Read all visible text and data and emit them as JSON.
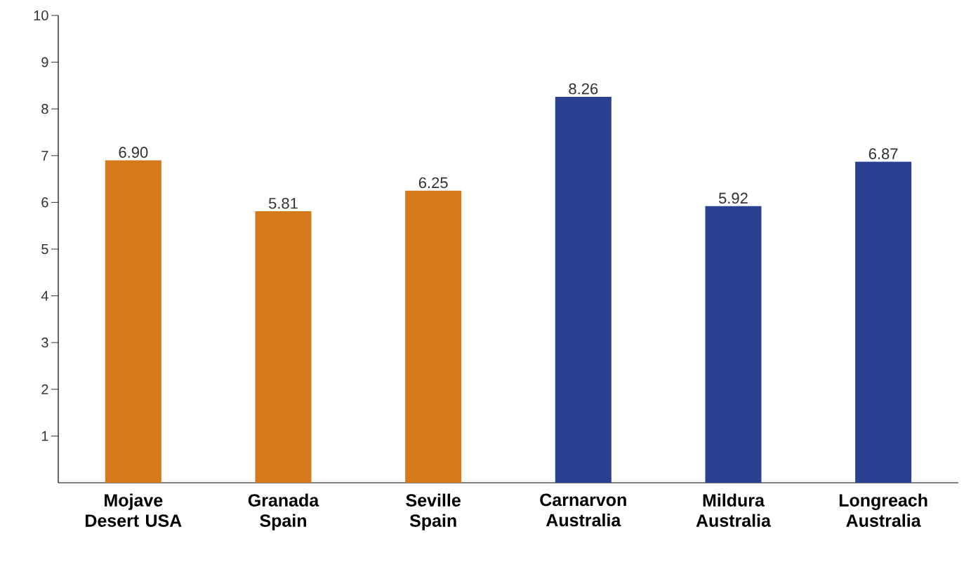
{
  "chart_data": {
    "type": "bar",
    "categories": [
      "Mojave Desert USA",
      "Granada Spain",
      "Seville Spain",
      "Carnarvon Australia",
      "Mildura Australia",
      "Longreach Australia"
    ],
    "values": [
      6.9,
      5.81,
      6.25,
      8.26,
      5.92,
      6.87
    ],
    "colors": [
      "#d47a1a",
      "#d47a1a",
      "#d47a1a",
      "#2a4191",
      "#2a4191",
      "#2a4191"
    ],
    "value_labels": [
      "6.90",
      "5.81",
      "6.25",
      "8.26",
      "5.92",
      "6.87"
    ],
    "ylim": [
      0,
      10
    ],
    "yticks": [
      1,
      2,
      3,
      4,
      5,
      6,
      7,
      8,
      9,
      10
    ]
  }
}
